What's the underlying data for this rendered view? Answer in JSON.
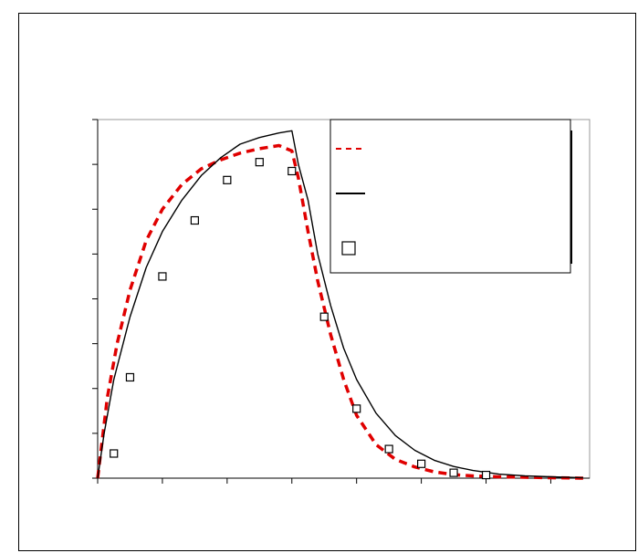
{
  "chart_data": {
    "type": "line",
    "title": "",
    "xlabel": "",
    "ylabel": "",
    "xlim": [
      0,
      7.6
    ],
    "ylim": [
      0,
      8
    ],
    "x_ticks": [
      0,
      1,
      2,
      3,
      4,
      5,
      6,
      7
    ],
    "y_ticks": [
      0,
      1,
      2,
      3,
      4,
      5,
      6,
      7,
      8
    ],
    "grid": false,
    "legend_position": "top-right",
    "series": [
      {
        "style": "dashed",
        "color": "#e00000",
        "x": [
          0,
          0.15,
          0.3,
          0.5,
          0.75,
          1.0,
          1.3,
          1.6,
          1.9,
          2.2,
          2.5,
          2.8,
          3.0,
          3.1,
          3.25,
          3.4,
          3.6,
          3.8,
          4.0,
          4.3,
          4.6,
          4.9,
          5.2,
          5.5,
          5.8,
          6.2,
          6.6,
          7.0,
          7.5
        ],
        "y": [
          0,
          1.8,
          3.0,
          4.2,
          5.3,
          6.0,
          6.55,
          6.9,
          7.1,
          7.25,
          7.35,
          7.42,
          7.3,
          6.7,
          5.5,
          4.4,
          3.2,
          2.2,
          1.4,
          0.75,
          0.42,
          0.25,
          0.14,
          0.08,
          0.05,
          0.03,
          0.02,
          0.01,
          0.0
        ]
      },
      {
        "style": "solid",
        "color": "#000000",
        "x": [
          0,
          0.1,
          0.25,
          0.5,
          0.75,
          1.0,
          1.3,
          1.6,
          1.9,
          2.2,
          2.5,
          2.8,
          3.0,
          3.1,
          3.25,
          3.4,
          3.6,
          3.8,
          4.0,
          4.3,
          4.6,
          4.9,
          5.2,
          5.5,
          5.8,
          6.2,
          6.6,
          7.0,
          7.5
        ],
        "y": [
          0,
          1.0,
          2.2,
          3.6,
          4.7,
          5.5,
          6.2,
          6.75,
          7.15,
          7.45,
          7.6,
          7.7,
          7.75,
          7.0,
          6.2,
          5.0,
          3.85,
          2.9,
          2.2,
          1.45,
          0.95,
          0.62,
          0.4,
          0.26,
          0.17,
          0.09,
          0.05,
          0.03,
          0.01
        ]
      },
      {
        "style": "markers",
        "marker": "square",
        "color": "#000000",
        "x": [
          0.25,
          0.5,
          1.0,
          1.5,
          2.0,
          2.5,
          3.0,
          3.5,
          4.0,
          4.5,
          5.0,
          5.5,
          6.0
        ],
        "y": [
          0.55,
          2.25,
          4.5,
          5.75,
          6.65,
          7.05,
          6.85,
          3.6,
          1.55,
          0.65,
          0.32,
          0.12,
          0.07
        ]
      }
    ]
  }
}
